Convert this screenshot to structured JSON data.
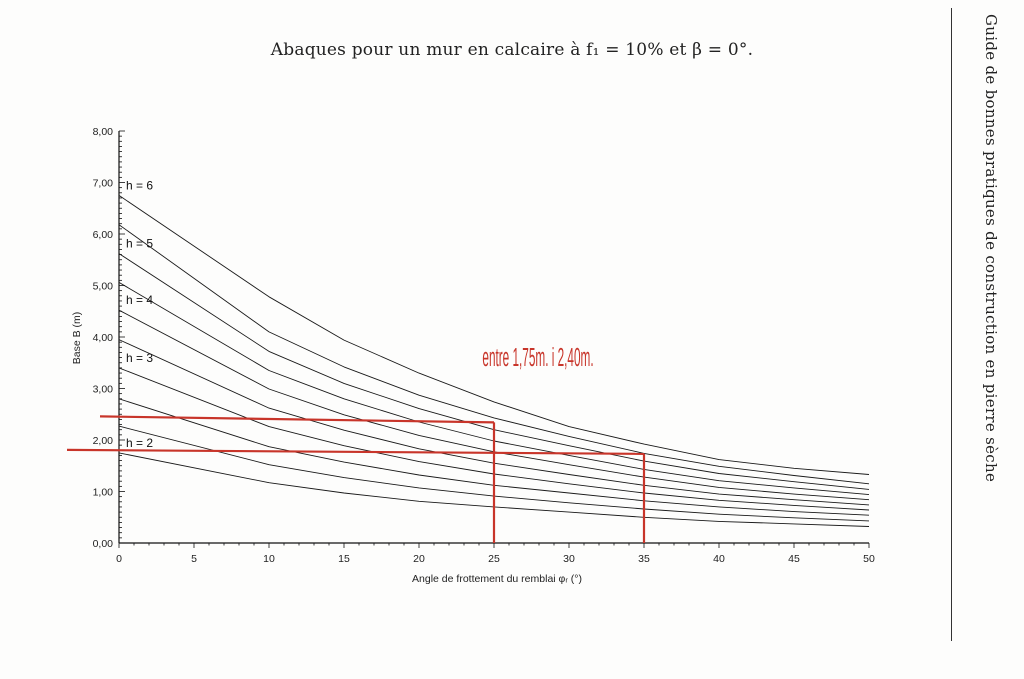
{
  "page": {
    "title": "Abaques pour un mur en calcaire à f₁ = 10% et β = 0°.",
    "side_header": "Guide de bonnes pratiques de construction en pierre sèche"
  },
  "chart_data": {
    "type": "line",
    "title": "",
    "xlabel": "Angle de frottement du remblai φᵣ (°)",
    "ylabel": "Base B (m)",
    "xlim": [
      0,
      50
    ],
    "ylim": [
      0,
      8
    ],
    "x_ticks": [
      0,
      5,
      10,
      15,
      20,
      25,
      30,
      35,
      40,
      45,
      50
    ],
    "y_ticks": [
      "0,00",
      "1,00",
      "2,00",
      "3,00",
      "4,00",
      "5,00",
      "6,00",
      "7,00",
      "8,00"
    ],
    "grid": false,
    "x": [
      0,
      10,
      15,
      20,
      25,
      30,
      35,
      40,
      45,
      50
    ],
    "series": [
      {
        "name": "h = 2",
        "values": [
          1.75,
          1.17,
          0.97,
          0.81,
          0.7,
          0.6,
          0.5,
          0.42,
          0.37,
          0.32
        ]
      },
      {
        "name": "",
        "values": [
          2.27,
          1.52,
          1.27,
          1.07,
          0.91,
          0.78,
          0.66,
          0.56,
          0.49,
          0.43
        ]
      },
      {
        "name": "",
        "values": [
          2.8,
          1.87,
          1.57,
          1.32,
          1.12,
          0.97,
          0.82,
          0.7,
          0.61,
          0.54
        ]
      },
      {
        "name": "h = 3",
        "values": [
          3.4,
          2.26,
          1.89,
          1.58,
          1.34,
          1.15,
          0.97,
          0.83,
          0.73,
          0.64
        ]
      },
      {
        "name": "",
        "values": [
          3.95,
          2.62,
          2.19,
          1.83,
          1.55,
          1.33,
          1.12,
          0.95,
          0.84,
          0.74
        ]
      },
      {
        "name": "h = 4",
        "values": [
          4.52,
          2.99,
          2.49,
          2.09,
          1.77,
          1.52,
          1.28,
          1.08,
          0.95,
          0.84
        ]
      },
      {
        "name": "",
        "values": [
          5.06,
          3.35,
          2.8,
          2.35,
          1.98,
          1.7,
          1.43,
          1.21,
          1.07,
          0.94
        ]
      },
      {
        "name": "h = 5",
        "values": [
          5.62,
          3.72,
          3.1,
          2.61,
          2.2,
          1.89,
          1.59,
          1.35,
          1.19,
          1.04
        ]
      },
      {
        "name": "",
        "values": [
          6.18,
          4.1,
          3.42,
          2.87,
          2.43,
          2.07,
          1.74,
          1.49,
          1.31,
          1.15
        ]
      },
      {
        "name": "h = 6",
        "values": [
          6.75,
          4.78,
          3.94,
          3.3,
          2.74,
          2.26,
          1.92,
          1.62,
          1.45,
          1.33
        ]
      }
    ],
    "annotations": [
      {
        "text": "entre 1,75m. i 2,40m.",
        "color": "#c8352a"
      },
      {
        "type": "marker",
        "x": 25,
        "y": 2.4,
        "color": "#c8352a"
      },
      {
        "type": "marker",
        "x": 35,
        "y": 1.75,
        "color": "#c8352a"
      }
    ],
    "line_color": "#1a1a1a",
    "annotation_color": "#c8352a"
  }
}
